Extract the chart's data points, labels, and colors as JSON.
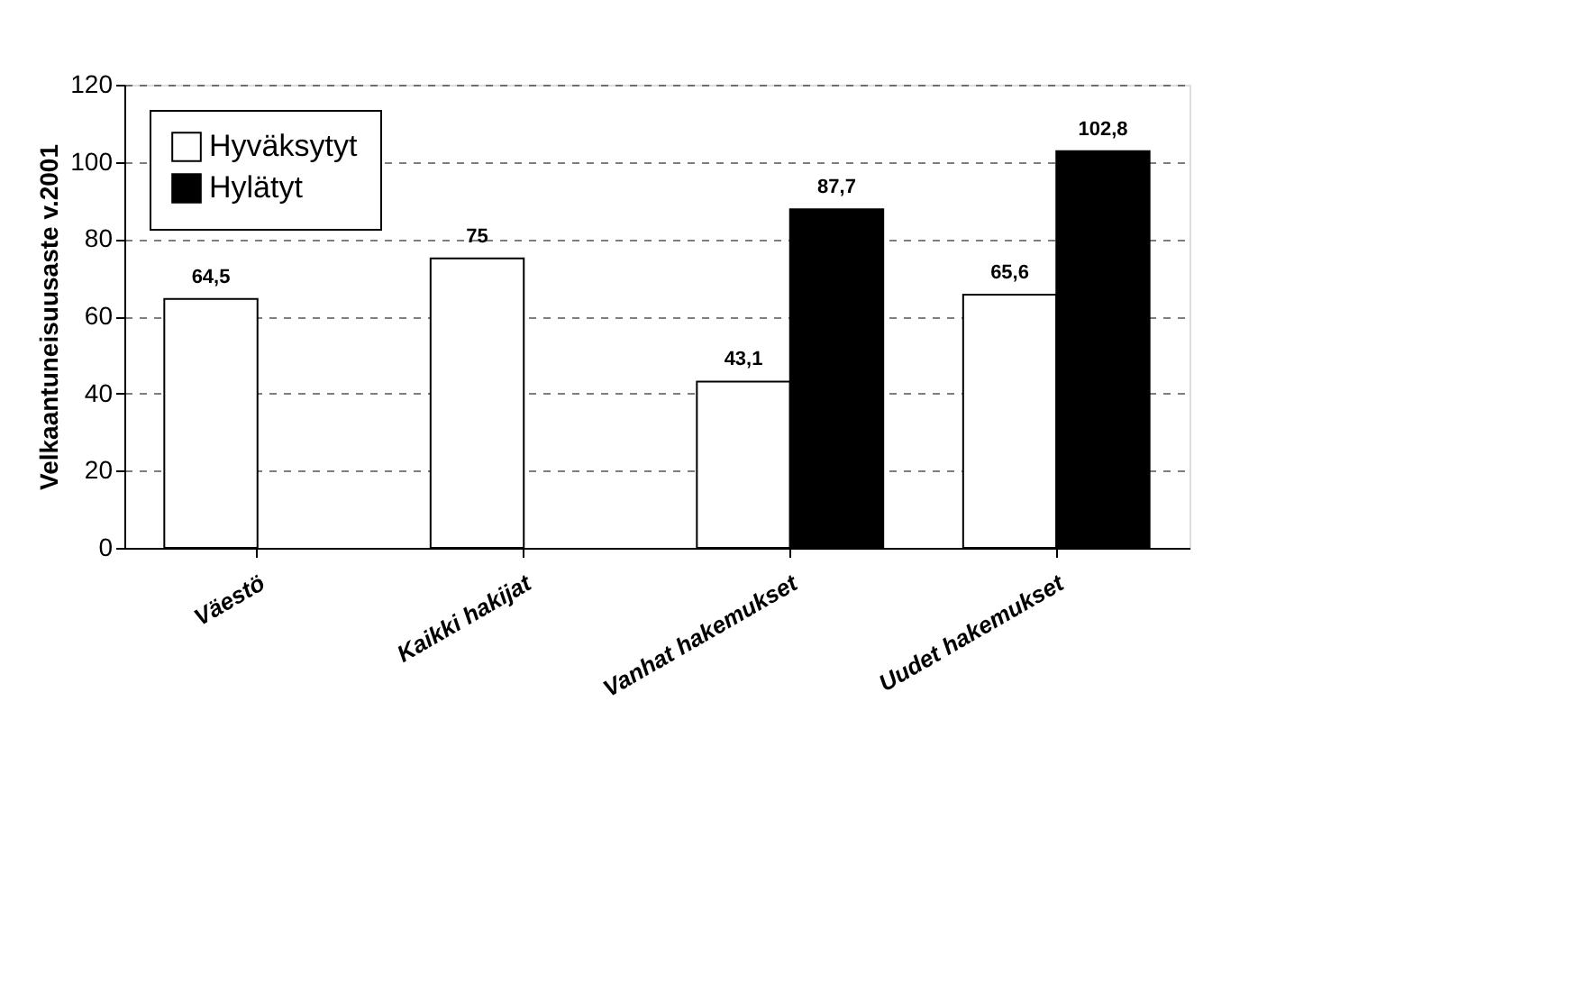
{
  "chart_data": {
    "type": "bar",
    "ylabel": "Velkaantuneisuusaste v.2001",
    "categories": [
      "Väestö",
      "Kaikki hakijat",
      "Vanhat hakemukset",
      "Uudet hakemukset"
    ],
    "series": [
      {
        "name": "Hyväksytyt",
        "color": "#ffffff",
        "values": [
          64.5,
          75,
          43.1,
          65.6
        ],
        "value_labels": [
          "64,5",
          "75",
          "43,1",
          "65,6"
        ]
      },
      {
        "name": "Hylätyt",
        "color": "#000000",
        "values": [
          null,
          null,
          87.7,
          102.8
        ],
        "value_labels": [
          null,
          null,
          "87,7",
          "102,8"
        ]
      }
    ],
    "ylim": [
      0,
      120
    ],
    "yticks": [
      0,
      20,
      40,
      60,
      80,
      100,
      120
    ],
    "grid": "y",
    "line_style": "dashed",
    "legend": "top left"
  }
}
